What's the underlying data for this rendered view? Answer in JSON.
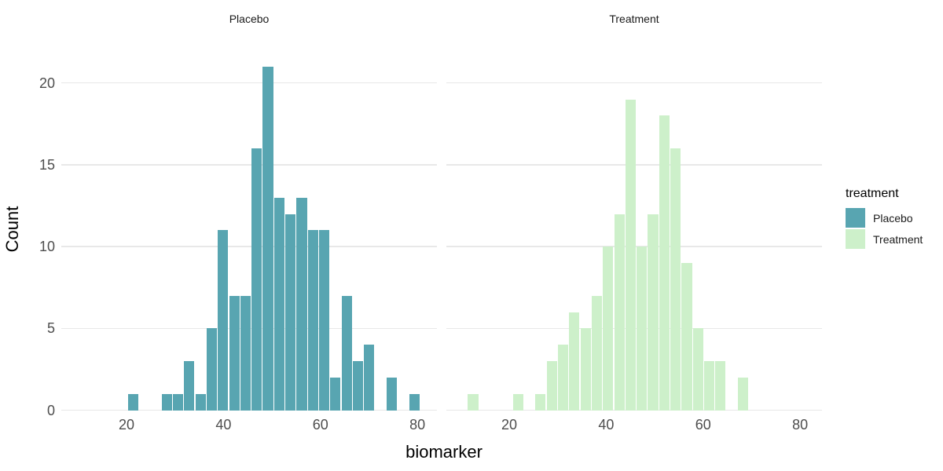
{
  "chart_data": {
    "type": "bar",
    "subtype": "faceted_histogram",
    "xlabel": "biomarker",
    "ylabel": "Count",
    "x_ticks": [
      20,
      40,
      60,
      80
    ],
    "y_ticks": [
      0,
      5,
      10,
      15,
      20
    ],
    "xlim": [
      6.55,
      84
    ],
    "ylim": [
      0,
      22
    ],
    "grid": "horizontal major gridlines only, light gray on white",
    "bin_start": 10.9,
    "bin_width": 2.32,
    "facets": [
      {
        "label": "Placebo",
        "fill": "#58a5b1",
        "counts": [
          0,
          0,
          0,
          0,
          1,
          0,
          0,
          1,
          1,
          3,
          1,
          5,
          11,
          7,
          7,
          16,
          21,
          13,
          12,
          13,
          11,
          11,
          2,
          7,
          3,
          4,
          0,
          2,
          0,
          1
        ]
      },
      {
        "label": "Treatment",
        "fill": "#cdf0ca",
        "counts": [
          1,
          0,
          0,
          0,
          1,
          0,
          1,
          3,
          4,
          6,
          5,
          7,
          10,
          12,
          19,
          10,
          12,
          18,
          16,
          9,
          5,
          3,
          3,
          0,
          2,
          0,
          0,
          0,
          0,
          0
        ]
      }
    ],
    "legend": {
      "title": "treatment",
      "entries": [
        {
          "label": "Placebo",
          "color": "#58a5b1"
        },
        {
          "label": "Treatment",
          "color": "#cdf0ca"
        }
      ]
    }
  },
  "colors": {
    "background": "#ffffff",
    "gridline": "#e8e8e8",
    "tick_text": "#4d4d4d",
    "strip_text": "#1a1a1a",
    "title_text": "#000000"
  }
}
